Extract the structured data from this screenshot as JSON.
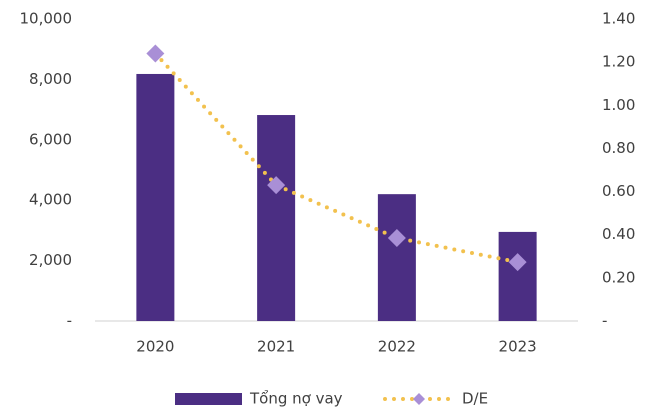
{
  "chart_data": {
    "type": "bar_line",
    "categories": [
      "2020",
      "2021",
      "2022",
      "2023"
    ],
    "series": [
      {
        "name": "Tổng nợ vay",
        "color": "#4b2e83",
        "values": [
          8180,
          6820,
          4200,
          2950
        ]
      },
      {
        "name": "D/E",
        "color": "#f2c14e",
        "marker_color": "#a98fd6",
        "axis": "y2",
        "values": [
          1.24,
          0.63,
          0.385,
          0.273
        ]
      }
    ],
    "ylim": [
      0,
      10000
    ],
    "yticks": [
      {
        "value": 0,
        "label": "-"
      },
      {
        "value": 2000,
        "label": "2,000"
      },
      {
        "value": 4000,
        "label": "4,000"
      },
      {
        "value": 6000,
        "label": "6,000"
      },
      {
        "value": 8000,
        "label": "8,000"
      },
      {
        "value": 10000,
        "label": "10,000"
      }
    ],
    "y2lim": [
      0,
      1.4
    ],
    "y2ticks": [
      {
        "value": 0,
        "label": "-"
      },
      {
        "value": 0.2,
        "label": "0.20"
      },
      {
        "value": 0.4,
        "label": "0.40"
      },
      {
        "value": 0.6,
        "label": "0.60"
      },
      {
        "value": 0.8,
        "label": "0.80"
      },
      {
        "value": 1.0,
        "label": "1.00"
      },
      {
        "value": 1.2,
        "label": "1.20"
      },
      {
        "value": 1.4,
        "label": "1.40"
      }
    ],
    "grid": false,
    "legend": "bottom"
  }
}
